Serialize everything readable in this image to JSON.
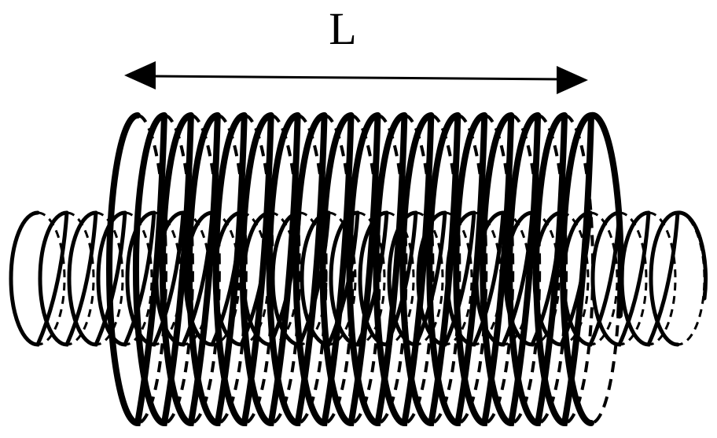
{
  "diagram": {
    "length_label": "L",
    "colors": {
      "ink": "#000000",
      "background": "#ffffff"
    },
    "outer_coil": {
      "icon": "large-helical-coil-icon",
      "turns": 18
    },
    "inner_coil": {
      "icon": "small-helical-coil-icon",
      "turns": 23
    },
    "length_arrow": {
      "icon": "double-headed-arrow-icon"
    }
  }
}
